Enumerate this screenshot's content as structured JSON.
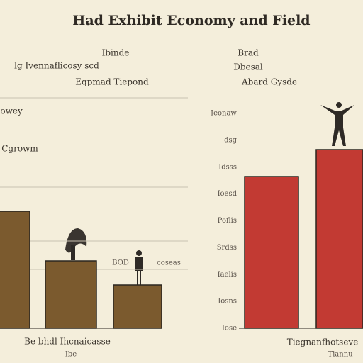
{
  "title": "Had Exhibit Economy and Field",
  "chart_data": [
    {
      "type": "bar",
      "title": "Ibinde",
      "subtitle": "lg Ivennaflicosy scd",
      "annotation": "Eqpmad Tiepond",
      "side_labels": [
        "Sowey",
        "Cgrowm"
      ],
      "point_label": "BOD",
      "point_note": "coseas",
      "xlabel": "Be bhdl Ihcnaicasse",
      "xnote": "Ibe",
      "categories": [
        null,
        null,
        null
      ],
      "values": [
        165,
        95,
        61
      ],
      "color": "#7b5a2e",
      "ylim": [
        0,
        330
      ],
      "grid": true
    },
    {
      "type": "bar",
      "title": "Brad",
      "subtitle": "Dbesal",
      "annotation": "Abard Gysde",
      "axis_labels": [
        "Ieonaw",
        "dsg",
        "Idsss",
        "Ioesd",
        "Poflis",
        "Srdss",
        "Iaelis",
        "Iosns",
        "Iose"
      ],
      "xlabel": "Tiegnanfhotseve",
      "xnote": "Tiannu",
      "categories": [
        null,
        null
      ],
      "values": [
        214,
        252
      ],
      "color": "#c23a33",
      "ylim": [
        0,
        320
      ],
      "grid": false
    }
  ]
}
